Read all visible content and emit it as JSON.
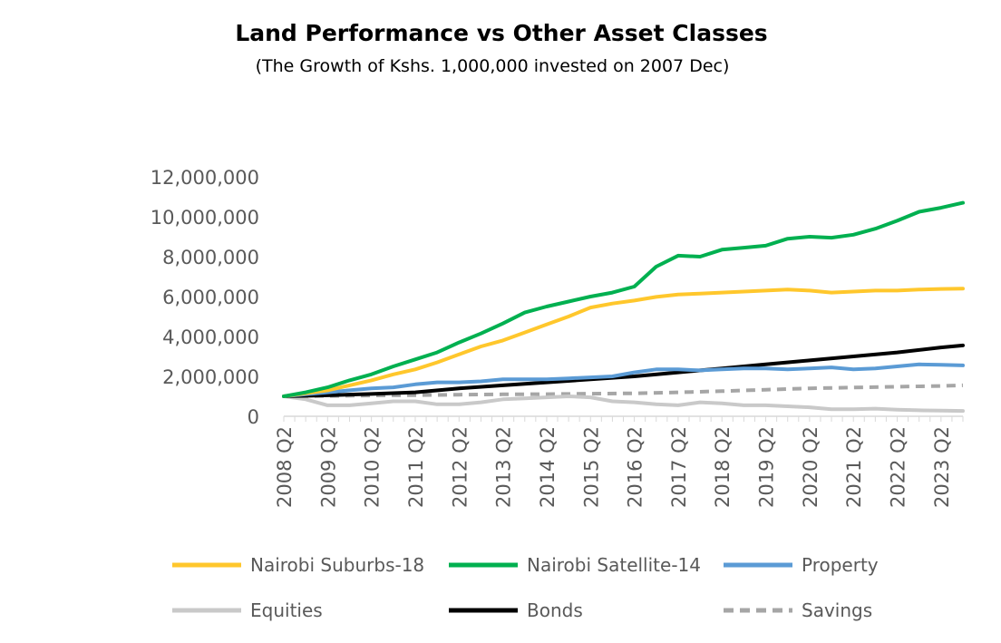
{
  "chart_data": {
    "type": "line",
    "title": "Land Performance vs Other Asset Classes",
    "subtitle": "(The Growth of Kshs. 1,000,000 invested on 2007 Dec)",
    "xlabel": "",
    "ylabel": "",
    "ylim": [
      0,
      12000000
    ],
    "yticks": [
      0,
      2000000,
      4000000,
      6000000,
      8000000,
      10000000,
      12000000
    ],
    "ytick_labels": [
      "0",
      "2,000,000",
      "4,000,000",
      "6,000,000",
      "8,000,000",
      "10,000,000",
      "12,000,000"
    ],
    "x_labels": [
      "2008 Q2",
      "2009 Q2",
      "2010 Q2",
      "2011 Q2",
      "2012 Q2",
      "2013 Q2",
      "2014 Q2",
      "2015 Q2",
      "2016 Q2",
      "2017 Q2",
      "2018 Q2",
      "2019 Q2",
      "2020 Q2",
      "2021 Q2",
      "2022 Q2",
      "2023 Q2"
    ],
    "x_range": [
      2008.0,
      2023.5
    ],
    "grid": false,
    "legend_position": "bottom",
    "series": [
      {
        "name": "Nairobi Suburbs-18",
        "color": "#FFC72C",
        "style": "solid",
        "points": [
          [
            2008.0,
            1000000
          ],
          [
            2008.5,
            1150000
          ],
          [
            2009.0,
            1300000
          ],
          [
            2009.5,
            1550000
          ],
          [
            2010.0,
            1800000
          ],
          [
            2010.5,
            2100000
          ],
          [
            2011.0,
            2350000
          ],
          [
            2011.5,
            2700000
          ],
          [
            2012.0,
            3100000
          ],
          [
            2012.5,
            3500000
          ],
          [
            2013.0,
            3800000
          ],
          [
            2013.5,
            4200000
          ],
          [
            2014.0,
            4600000
          ],
          [
            2014.5,
            5000000
          ],
          [
            2015.0,
            5450000
          ],
          [
            2015.5,
            5650000
          ],
          [
            2016.0,
            5800000
          ],
          [
            2016.5,
            5980000
          ],
          [
            2017.0,
            6100000
          ],
          [
            2017.5,
            6150000
          ],
          [
            2018.0,
            6200000
          ],
          [
            2018.5,
            6250000
          ],
          [
            2019.0,
            6300000
          ],
          [
            2019.5,
            6350000
          ],
          [
            2020.0,
            6300000
          ],
          [
            2020.5,
            6200000
          ],
          [
            2021.0,
            6250000
          ],
          [
            2021.5,
            6300000
          ],
          [
            2022.0,
            6300000
          ],
          [
            2022.5,
            6350000
          ],
          [
            2023.0,
            6380000
          ],
          [
            2023.5,
            6400000
          ]
        ]
      },
      {
        "name": "Nairobi Satellite-14",
        "color": "#00B050",
        "style": "solid",
        "points": [
          [
            2008.0,
            1000000
          ],
          [
            2008.5,
            1200000
          ],
          [
            2009.0,
            1450000
          ],
          [
            2009.5,
            1800000
          ],
          [
            2010.0,
            2100000
          ],
          [
            2010.5,
            2500000
          ],
          [
            2011.0,
            2850000
          ],
          [
            2011.5,
            3200000
          ],
          [
            2012.0,
            3700000
          ],
          [
            2012.5,
            4150000
          ],
          [
            2013.0,
            4650000
          ],
          [
            2013.5,
            5200000
          ],
          [
            2014.0,
            5500000
          ],
          [
            2014.5,
            5750000
          ],
          [
            2015.0,
            6000000
          ],
          [
            2015.5,
            6200000
          ],
          [
            2016.0,
            6500000
          ],
          [
            2016.5,
            7500000
          ],
          [
            2017.0,
            8050000
          ],
          [
            2017.5,
            8000000
          ],
          [
            2018.0,
            8350000
          ],
          [
            2018.5,
            8450000
          ],
          [
            2019.0,
            8550000
          ],
          [
            2019.5,
            8900000
          ],
          [
            2020.0,
            9000000
          ],
          [
            2020.5,
            8950000
          ],
          [
            2021.0,
            9100000
          ],
          [
            2021.5,
            9400000
          ],
          [
            2022.0,
            9800000
          ],
          [
            2022.5,
            10250000
          ],
          [
            2023.0,
            10450000
          ],
          [
            2023.5,
            10700000
          ]
        ]
      },
      {
        "name": "Property",
        "color": "#5B9BD5",
        "style": "solid",
        "points": [
          [
            2008.0,
            1000000
          ],
          [
            2008.5,
            1100000
          ],
          [
            2009.0,
            1200000
          ],
          [
            2009.5,
            1300000
          ],
          [
            2010.0,
            1400000
          ],
          [
            2010.5,
            1450000
          ],
          [
            2011.0,
            1600000
          ],
          [
            2011.5,
            1700000
          ],
          [
            2012.0,
            1700000
          ],
          [
            2012.5,
            1750000
          ],
          [
            2013.0,
            1850000
          ],
          [
            2013.5,
            1850000
          ],
          [
            2014.0,
            1850000
          ],
          [
            2014.5,
            1900000
          ],
          [
            2015.0,
            1950000
          ],
          [
            2015.5,
            2000000
          ],
          [
            2016.0,
            2200000
          ],
          [
            2016.5,
            2350000
          ],
          [
            2017.0,
            2350000
          ],
          [
            2017.5,
            2300000
          ],
          [
            2018.0,
            2350000
          ],
          [
            2018.5,
            2400000
          ],
          [
            2019.0,
            2400000
          ],
          [
            2019.5,
            2350000
          ],
          [
            2020.0,
            2400000
          ],
          [
            2020.5,
            2450000
          ],
          [
            2021.0,
            2350000
          ],
          [
            2021.5,
            2400000
          ],
          [
            2022.0,
            2500000
          ],
          [
            2022.5,
            2600000
          ],
          [
            2023.0,
            2580000
          ],
          [
            2023.5,
            2550000
          ]
        ]
      },
      {
        "name": "Equities",
        "color": "#C9C9C9",
        "style": "solid",
        "points": [
          [
            2008.0,
            1000000
          ],
          [
            2008.5,
            850000
          ],
          [
            2009.0,
            550000
          ],
          [
            2009.5,
            550000
          ],
          [
            2010.0,
            650000
          ],
          [
            2010.5,
            750000
          ],
          [
            2011.0,
            750000
          ],
          [
            2011.5,
            600000
          ],
          [
            2012.0,
            600000
          ],
          [
            2012.5,
            700000
          ],
          [
            2013.0,
            850000
          ],
          [
            2013.5,
            900000
          ],
          [
            2014.0,
            950000
          ],
          [
            2014.5,
            1000000
          ],
          [
            2015.0,
            950000
          ],
          [
            2015.5,
            750000
          ],
          [
            2016.0,
            700000
          ],
          [
            2016.5,
            600000
          ],
          [
            2017.0,
            550000
          ],
          [
            2017.5,
            700000
          ],
          [
            2018.0,
            650000
          ],
          [
            2018.5,
            550000
          ],
          [
            2019.0,
            550000
          ],
          [
            2019.5,
            500000
          ],
          [
            2020.0,
            450000
          ],
          [
            2020.5,
            350000
          ],
          [
            2021.0,
            350000
          ],
          [
            2021.5,
            380000
          ],
          [
            2022.0,
            330000
          ],
          [
            2022.5,
            300000
          ],
          [
            2023.0,
            280000
          ],
          [
            2023.5,
            270000
          ]
        ]
      },
      {
        "name": "Bonds",
        "color": "#000000",
        "style": "solid",
        "points": [
          [
            2008.0,
            1000000
          ],
          [
            2009.0,
            1050000
          ],
          [
            2010.0,
            1120000
          ],
          [
            2011.0,
            1200000
          ],
          [
            2012.0,
            1400000
          ],
          [
            2013.0,
            1550000
          ],
          [
            2014.0,
            1700000
          ],
          [
            2015.0,
            1850000
          ],
          [
            2016.0,
            2000000
          ],
          [
            2017.0,
            2200000
          ],
          [
            2018.0,
            2400000
          ],
          [
            2019.0,
            2600000
          ],
          [
            2020.0,
            2800000
          ],
          [
            2021.0,
            3000000
          ],
          [
            2022.0,
            3200000
          ],
          [
            2023.0,
            3450000
          ],
          [
            2023.5,
            3550000
          ]
        ]
      },
      {
        "name": "Savings",
        "color": "#A6A6A6",
        "style": "dashed",
        "points": [
          [
            2008.0,
            1000000
          ],
          [
            2009.0,
            1020000
          ],
          [
            2010.0,
            1040000
          ],
          [
            2011.0,
            1060000
          ],
          [
            2012.0,
            1080000
          ],
          [
            2013.0,
            1100000
          ],
          [
            2014.0,
            1110000
          ],
          [
            2015.0,
            1130000
          ],
          [
            2016.0,
            1150000
          ],
          [
            2017.0,
            1200000
          ],
          [
            2018.0,
            1260000
          ],
          [
            2019.0,
            1330000
          ],
          [
            2020.0,
            1400000
          ],
          [
            2021.0,
            1440000
          ],
          [
            2022.0,
            1480000
          ],
          [
            2023.0,
            1520000
          ],
          [
            2023.5,
            1550000
          ]
        ]
      }
    ]
  }
}
